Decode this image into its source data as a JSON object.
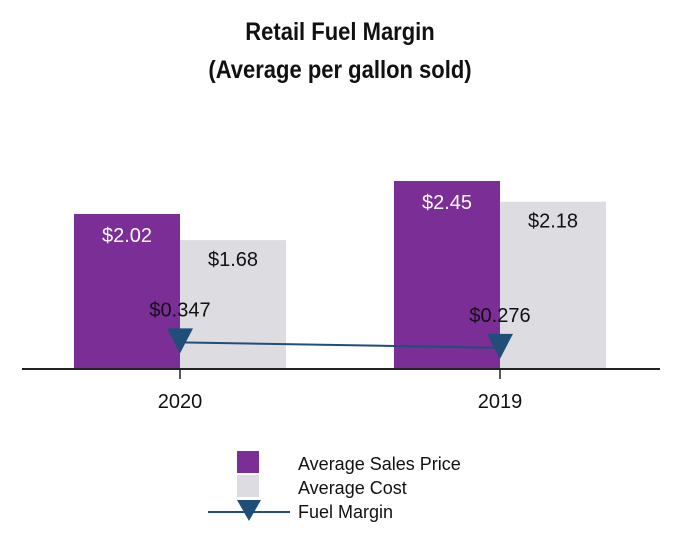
{
  "chart_data": {
    "type": "bar",
    "title": "Retail Fuel Margin",
    "subtitle": "(Average per gallon sold)",
    "categories": [
      "2020",
      "2019"
    ],
    "series": [
      {
        "name": "Average Sales Price",
        "kind": "bar",
        "color": "#7b2f96",
        "values": [
          2.02,
          2.45
        ],
        "labels": [
          "$2.02",
          "$2.45"
        ]
      },
      {
        "name": "Average Cost",
        "kind": "bar",
        "color": "#dcdce1",
        "values": [
          1.68,
          2.18
        ],
        "labels": [
          "$1.68",
          "$2.18"
        ]
      },
      {
        "name": "Fuel Margin",
        "kind": "line",
        "marker": "triangle-down",
        "color": "#1f4e79",
        "values": [
          0.347,
          0.276
        ],
        "labels": [
          "$0.347",
          "$0.276"
        ]
      }
    ],
    "ylim": [
      0,
      2.45
    ],
    "xlabel": "",
    "ylabel": "",
    "grid": false,
    "legend": "bottom"
  }
}
